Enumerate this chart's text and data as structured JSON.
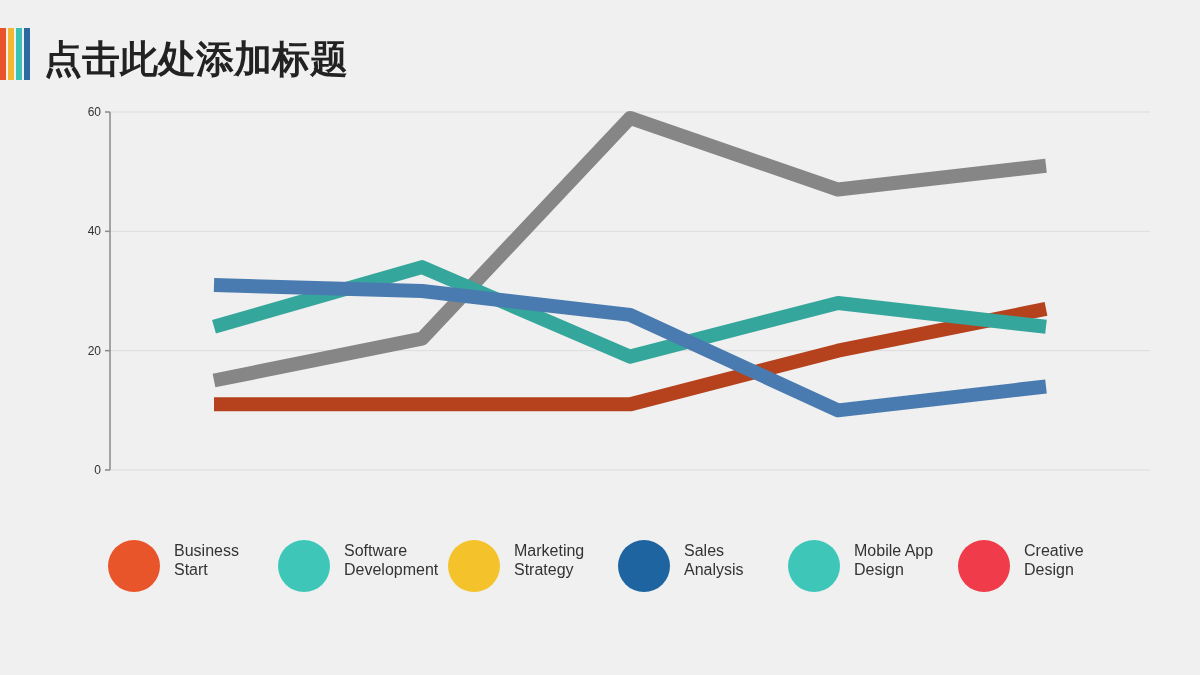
{
  "chart_data": {
    "type": "line",
    "title": "点击此处添加标题",
    "categories": [
      null,
      null,
      null,
      null,
      null
    ],
    "series": [
      {
        "color": "#4a7bb0",
        "values": [
          31,
          30,
          26,
          10,
          14
        ]
      },
      {
        "color": "#35a69c",
        "values": [
          24,
          34,
          19,
          28,
          24
        ]
      },
      {
        "color": "#868686",
        "values": [
          15,
          22,
          59,
          47,
          51
        ]
      },
      {
        "color": "#b5411d",
        "values": [
          11,
          11,
          11,
          20,
          27
        ]
      }
    ],
    "ylim": [
      0,
      60
    ],
    "yticks": [
      0,
      20,
      40,
      60
    ],
    "grid": "y",
    "annotations": [
      "Business\nStart",
      "Software\nDevelopment",
      "Marketing\nStrategy",
      "Sales\nAnalysis",
      "Mobile App\nDesign",
      "Creative\nDesign"
    ]
  }
}
